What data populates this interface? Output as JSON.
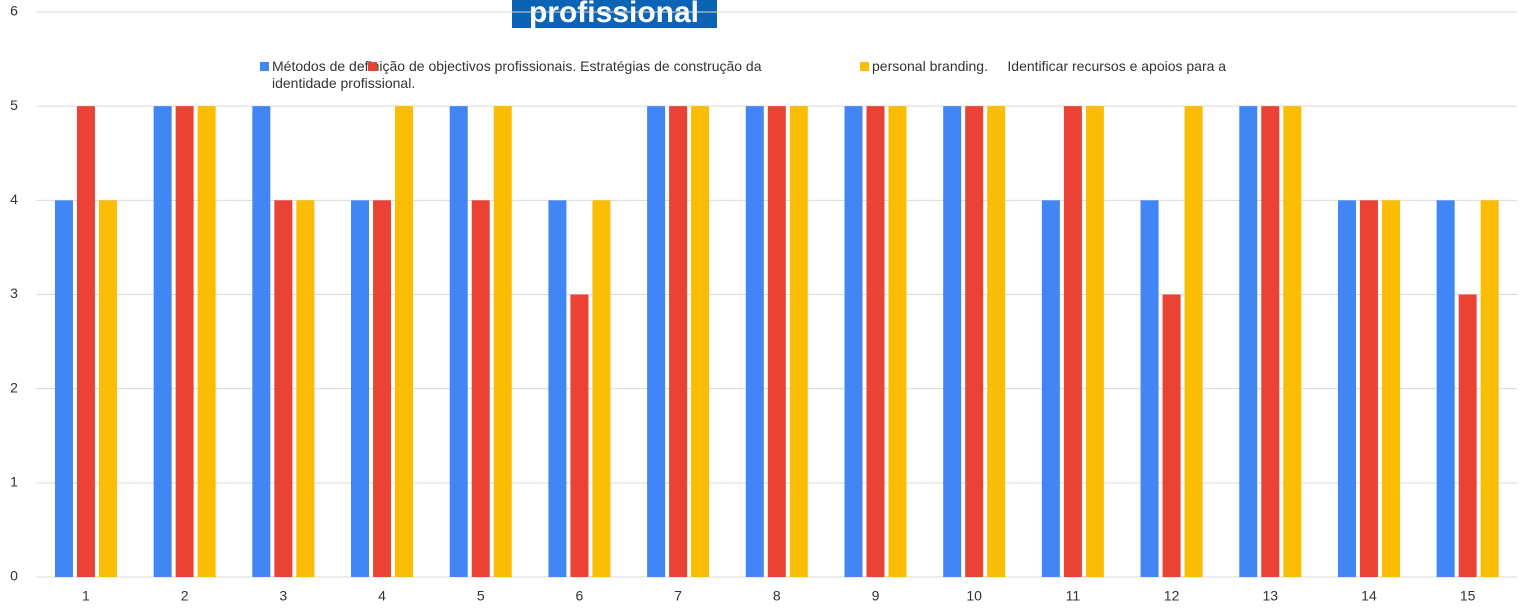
{
  "chart_data": {
    "type": "bar",
    "title": "profissional",
    "categories": [
      "1",
      "2",
      "3",
      "4",
      "5",
      "6",
      "7",
      "8",
      "9",
      "10",
      "11",
      "12",
      "13",
      "14",
      "15"
    ],
    "series": [
      {
        "name": "Métodos de definição de objectivos profissionais. Estratégias de construção da identidade profissional.",
        "color": "#4285f4",
        "values": [
          4,
          5,
          5,
          4,
          5,
          4,
          5,
          5,
          5,
          5,
          4,
          4,
          5,
          4,
          4
        ]
      },
      {
        "color": "#ea4335",
        "values": [
          5,
          5,
          4,
          4,
          4,
          3,
          5,
          5,
          5,
          5,
          5,
          3,
          5,
          4,
          3
        ]
      },
      {
        "name": "personal branding.     Identificar recursos e apoios para a",
        "color": "#fbbc04",
        "values": [
          4,
          5,
          4,
          5,
          5,
          4,
          5,
          5,
          5,
          5,
          5,
          5,
          5,
          4,
          4
        ]
      }
    ],
    "ylim": [
      0,
      6
    ],
    "yticks": [
      0,
      1,
      2,
      3,
      4,
      5,
      6
    ],
    "grid": true
  }
}
